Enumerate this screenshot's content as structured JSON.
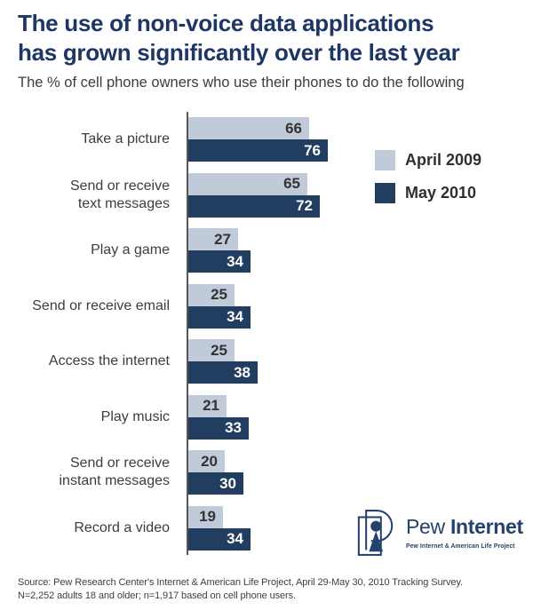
{
  "title": {
    "line1": "The use of non-voice data applications",
    "line2": "has grown significantly over the last year"
  },
  "subtitle": "The % of cell phone owners who use their phones to do the following",
  "legend": [
    {
      "label": "April 2009",
      "color": "#c0cad9"
    },
    {
      "label": "May 2010",
      "color": "#213d5f"
    }
  ],
  "chart_data": {
    "type": "bar",
    "orientation": "horizontal",
    "categories": [
      "Take a picture",
      "Send or receive\ntext messages",
      "Play a game",
      "Send or receive email",
      "Access the internet",
      "Play music",
      "Send or receive\ninstant messages",
      "Record a video"
    ],
    "series": [
      {
        "name": "April 2009",
        "color": "#c0cad9",
        "values": [
          66,
          65,
          27,
          25,
          25,
          21,
          20,
          19
        ]
      },
      {
        "name": "May 2010",
        "color": "#213d5f",
        "values": [
          76,
          72,
          34,
          34,
          38,
          33,
          30,
          34
        ]
      }
    ],
    "xlim": [
      0,
      100
    ],
    "value_labels": "inside-end",
    "grid": false,
    "legend_position": "upper-right",
    "axis_color": "#55565a"
  },
  "logo": {
    "brand_regular": "Pew ",
    "brand_bold": "Internet",
    "tagline": "Pew Internet & American Life Project",
    "color": "#24426b"
  },
  "footer": {
    "line1": "Source: Pew Research Center's Internet & American Life Project, April 29-May 30, 2010 Tracking Survey.",
    "line2": "N=2,252 adults 18 and older; n=1,917 based on cell phone users."
  }
}
